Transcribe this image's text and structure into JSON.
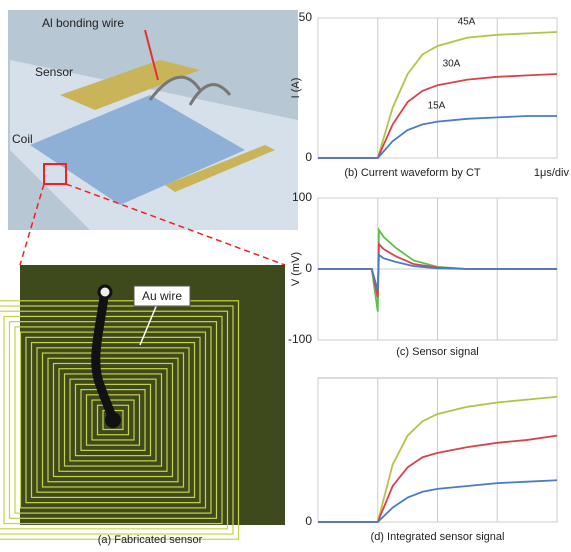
{
  "figure": {
    "photo_labels": [
      "Al bonding wire",
      "Sensor",
      "Coil",
      "Au wire"
    ],
    "caption": "(a) Fabricated sensor"
  },
  "chart_data": [
    {
      "type": "line",
      "caption": "(b) Current waveform by CT",
      "x_unit_label": "1μs/div",
      "ylabel": "I (A)",
      "x": [
        0,
        0.5,
        1,
        1.25,
        1.5,
        1.75,
        2,
        2.5,
        3,
        3.5,
        4
      ],
      "xlim": [
        0,
        4
      ],
      "xticks": [
        0,
        1,
        2,
        3,
        4
      ],
      "ylim": [
        0,
        50
      ],
      "yticks": [
        0,
        50
      ],
      "grid": true,
      "series_labels": true,
      "series": [
        {
          "name": "45A",
          "color": "#b5c24a",
          "values": [
            0,
            0,
            0,
            18,
            30,
            37,
            40,
            43,
            44,
            44.5,
            45
          ]
        },
        {
          "name": "30A",
          "color": "#d9424c",
          "values": [
            0,
            0,
            0,
            12,
            20,
            24,
            26,
            28,
            29,
            29.5,
            30
          ]
        },
        {
          "name": "15A",
          "color": "#4a7bc4",
          "values": [
            0,
            0,
            0,
            6,
            10,
            12,
            13,
            14,
            14.5,
            15,
            15
          ]
        }
      ]
    },
    {
      "type": "line",
      "caption": "(c) Sensor signal",
      "ylabel": "V (mV)",
      "x": [
        0,
        0.9,
        1,
        1.02,
        1.1,
        1.3,
        1.6,
        2,
        2.5,
        3,
        4
      ],
      "xlim": [
        0,
        4
      ],
      "xticks": [
        0,
        1,
        2,
        3,
        4
      ],
      "ylim": [
        -100,
        100
      ],
      "yticks": [
        -100,
        0,
        100
      ],
      "grid": true,
      "series": [
        {
          "name": "45A",
          "color": "#5cbf4a",
          "values": [
            0,
            0,
            -60,
            55,
            45,
            30,
            12,
            3,
            0,
            0,
            0
          ]
        },
        {
          "name": "30A",
          "color": "#d9424c",
          "values": [
            0,
            0,
            -40,
            35,
            28,
            18,
            7,
            2,
            0,
            0,
            0
          ]
        },
        {
          "name": "15A",
          "color": "#4a7bc4",
          "values": [
            0,
            0,
            -30,
            20,
            15,
            10,
            4,
            1,
            0,
            0,
            0
          ]
        }
      ]
    },
    {
      "type": "line",
      "caption": "(d) Integrated sensor signal",
      "x": [
        0,
        0.5,
        1,
        1.25,
        1.5,
        1.75,
        2,
        2.5,
        3,
        3.5,
        4
      ],
      "xlim": [
        0,
        4
      ],
      "xticks": [
        0,
        1,
        2,
        3,
        4
      ],
      "ylim": [
        0,
        100
      ],
      "yticks": [
        0
      ],
      "grid": true,
      "series": [
        {
          "name": "45A",
          "color": "#b5c24a",
          "values": [
            0,
            0,
            0,
            40,
            60,
            70,
            75,
            80,
            83,
            85,
            87
          ]
        },
        {
          "name": "30A",
          "color": "#d9424c",
          "values": [
            0,
            0,
            0,
            25,
            38,
            45,
            48,
            52,
            55,
            57,
            60
          ]
        },
        {
          "name": "15A",
          "color": "#4a7bc4",
          "values": [
            0,
            0,
            0,
            10,
            17,
            21,
            23,
            25,
            27,
            28,
            29
          ]
        }
      ]
    }
  ]
}
